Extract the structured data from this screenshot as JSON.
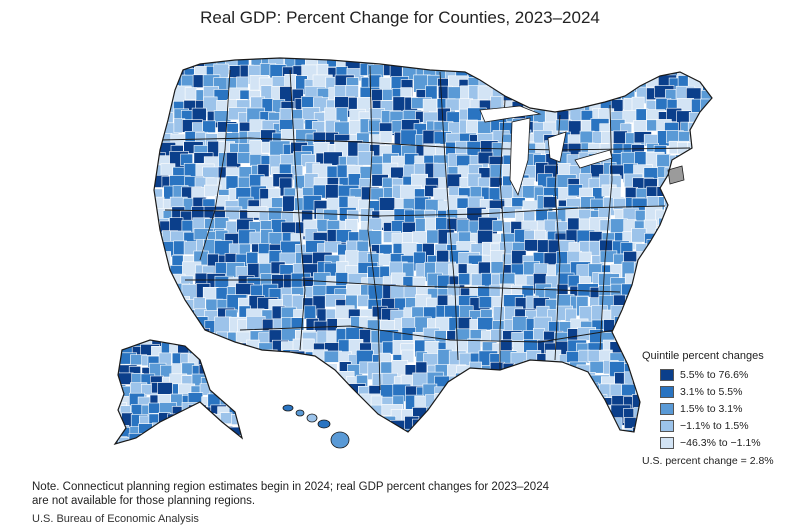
{
  "title": "Real GDP: Percent Change for Counties, 2023–2024",
  "legend": {
    "title": "Quintile percent changes",
    "items": [
      {
        "label": "5.5% to 76.6%",
        "color": "#0b3f8b"
      },
      {
        "label": "3.1% to 5.5%",
        "color": "#2a74c1"
      },
      {
        "label": "1.5% to 3.1%",
        "color": "#5a9ad6"
      },
      {
        "label": "−1.1% to 1.5%",
        "color": "#9cc3ea"
      },
      {
        "label": "−46.3% to −1.1%",
        "color": "#d3e4f5"
      }
    ],
    "us_change": "U.S. percent change = 2.8%"
  },
  "note": "Note. Connecticut planning region estimates begin in 2024; real GDP percent changes for 2023–2024 are not available for those planning regions.",
  "source": "U.S. Bureau of Economic Analysis",
  "colors": {
    "unavailable": "#9b9b9b",
    "county_border": "#ffffff",
    "state_border": "#1a1a1a"
  }
}
